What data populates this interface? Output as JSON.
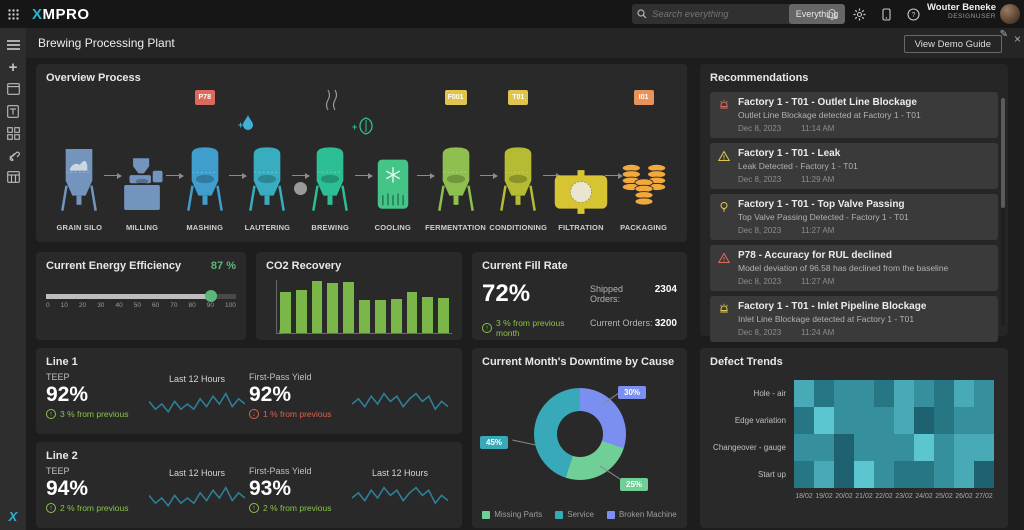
{
  "topbar": {
    "logo_x": "X",
    "logo_rest": "MPRO",
    "search_placeholder": "Search everything",
    "search_scope": "Everything",
    "icons": [
      "app-grid-icon",
      "search-icon",
      "bell-icon",
      "gear-icon",
      "mobile-icon",
      "help-icon"
    ],
    "user_name": "Wouter Beneke",
    "user_role": "DESIGNUSER"
  },
  "sidebar": {
    "icons": [
      "menu-icon",
      "add-icon",
      "window-icon",
      "template-icon",
      "blocks-icon",
      "link-icon",
      "table-icon"
    ],
    "logo": "X"
  },
  "header": {
    "title": "Brewing Processing Plant",
    "demo_button": "View Demo Guide"
  },
  "colors": {
    "up": "#8bc34a",
    "down": "#e0604f",
    "accent_green": "#5cb87a",
    "spark": "#2e8099",
    "bar_green": "#7ab648"
  },
  "overview": {
    "title": "Overview Process",
    "stages": [
      {
        "label": "GRAIN SILO",
        "type": "silo",
        "color": "#7294bd"
      },
      {
        "label": "MILLING",
        "type": "mill",
        "color": "#7294bd"
      },
      {
        "label": "MASHING",
        "type": "tank",
        "color": "#3f9ecb",
        "badge": "P78",
        "badge_color": "#d96a5c"
      },
      {
        "label": "LAUTERING",
        "type": "tank",
        "color": "#38adc0"
      },
      {
        "label": "BREWING",
        "type": "tank",
        "color": "#2cbf96"
      },
      {
        "label": "COOLING",
        "type": "box",
        "color": "#45c487"
      },
      {
        "label": "FERMENTATION",
        "type": "tank",
        "color": "#8fbf4f",
        "badge": "F001",
        "badge_color": "#dfc44e"
      },
      {
        "label": "CONDITIONING",
        "type": "tank",
        "color": "#b5bb33",
        "badge": "T01",
        "badge_color": "#dfc44e"
      },
      {
        "label": "FILTRATION",
        "type": "filter",
        "color": "#d6c433"
      },
      {
        "label": "PACKAGING",
        "type": "kegs",
        "color": "#f2a93b",
        "badge": "I01",
        "badge_color": "#e8935a"
      }
    ]
  },
  "recommendations": {
    "title": "Recommendations",
    "items": [
      {
        "icon": "alarm-icon",
        "icon_color": "#d96a5c",
        "title": "Factory 1 - T01 - Outlet Line Blockage",
        "desc": "Outlet Line Blockage detected at Factory 1 - T01",
        "date": "Dec 8, 2023",
        "time": "11:14 AM"
      },
      {
        "icon": "warning-icon",
        "icon_color": "#dfc44e",
        "title": "Factory 1 - T01 - Leak",
        "desc": "Leak Detected - Factory 1 - T01",
        "date": "Dec 8, 2023",
        "time": "11:29 AM"
      },
      {
        "icon": "bulb-icon",
        "icon_color": "#dfc44e",
        "title": "Factory 1 - T01 - Top Valve Passing",
        "desc": "Top Valve Passing Detected - Factory 1 - T01",
        "date": "Dec 8, 2023",
        "time": "11:27 AM"
      },
      {
        "icon": "warning-icon",
        "icon_color": "#d96a5c",
        "title": "P78 - Accuracy for RUL declined",
        "desc": "Model deviation of 96.58 has declined from the baseline",
        "date": "Dec 8, 2023",
        "time": "11:27 AM"
      },
      {
        "icon": "alarm-icon",
        "icon_color": "#dfc44e",
        "title": "Factory 1 - T01 - Inlet Pipeline Blockage",
        "desc": "Inlet Line Blockage detected at Factory 1 - T01",
        "date": "Dec 8, 2023",
        "time": "11:24 AM"
      }
    ]
  },
  "energy": {
    "title": "Current Energy Efficiency",
    "value": "87 %",
    "percent": 87,
    "ticks": [
      "0",
      "10",
      "20",
      "30",
      "40",
      "50",
      "60",
      "70",
      "80",
      "90",
      "100"
    ]
  },
  "co2": {
    "title": "CO2 Recovery",
    "type": "bar",
    "y_zero": "0",
    "values": [
      78,
      82,
      100,
      96,
      98,
      63,
      64,
      66,
      79,
      70,
      68
    ]
  },
  "fill": {
    "title": "Current Fill Rate",
    "value": "72%",
    "delta": "3 % from previous month",
    "delta_dir": "up",
    "shipped_label": "Shipped Orders:",
    "shipped_value": "2304",
    "current_label": "Current Orders:",
    "current_value": "3200"
  },
  "lines": [
    {
      "title": "Line 1",
      "teep_label": "TEEP",
      "teep_value": "92%",
      "teep_delta": "3 % from previous",
      "teep_dir": "up",
      "spark1_label": "Last 12 Hours",
      "spark1": [
        6,
        3,
        5,
        2,
        6,
        3,
        5,
        3,
        7,
        4,
        8,
        5,
        9,
        4,
        7,
        5
      ],
      "fpy_label": "First-Pass Yield",
      "fpy_value": "92%",
      "fpy_delta": "1 % from previous",
      "fpy_dir": "down",
      "spark2_label": "",
      "spark2": [
        5,
        7,
        4,
        8,
        5,
        9,
        6,
        8,
        4,
        7,
        9,
        6,
        8,
        3,
        6,
        4
      ]
    },
    {
      "title": "Line 2",
      "teep_label": "TEEP",
      "teep_value": "94%",
      "teep_delta": "2 % from previous",
      "teep_dir": "up",
      "spark1_label": "Last 12 Hours",
      "spark1": [
        6,
        3,
        5,
        2,
        6,
        3,
        5,
        3,
        7,
        4,
        8,
        5,
        9,
        4,
        7,
        5
      ],
      "fpy_label": "First-Pass Yield",
      "fpy_value": "93%",
      "fpy_delta": "2 % from previous",
      "fpy_dir": "up",
      "spark2_label": "Last 12 Hours",
      "spark2": [
        5,
        7,
        4,
        8,
        5,
        9,
        6,
        8,
        4,
        7,
        9,
        6,
        8,
        3,
        6,
        4
      ]
    }
  ],
  "downtime": {
    "title": "Current Month's Downtime by Cause",
    "type": "donut",
    "slices": [
      {
        "label": "Broken Machine",
        "value": 30,
        "color": "#7b8ff0"
      },
      {
        "label": "Missing Parts",
        "value": 25,
        "color": "#6fcf97"
      },
      {
        "label": "Service",
        "value": 45,
        "color": "#38a9b8"
      }
    ],
    "legend": [
      "Missing Parts",
      "Service",
      "Broken Machine"
    ]
  },
  "defects": {
    "title": "Defect Trends",
    "type": "heatmap",
    "rows": [
      "Hole - air",
      "Edge variation",
      "Changeover - gauge",
      "Start up"
    ],
    "cols": [
      "18/02",
      "19/02",
      "20/02",
      "21/02",
      "22/02",
      "23/02",
      "24/02",
      "25/02",
      "26/02",
      "27/02"
    ],
    "values": [
      [
        4,
        2,
        3,
        3,
        2,
        4,
        3,
        2,
        4,
        3
      ],
      [
        2,
        5,
        3,
        3,
        3,
        4,
        1,
        2,
        3,
        3
      ],
      [
        3,
        3,
        1,
        3,
        3,
        3,
        5,
        3,
        4,
        4
      ],
      [
        2,
        4,
        1,
        5,
        3,
        2,
        2,
        3,
        4,
        1
      ]
    ],
    "palette": [
      "#1e6170",
      "#277683",
      "#368f9c",
      "#48aab6",
      "#5cc6d0"
    ]
  }
}
